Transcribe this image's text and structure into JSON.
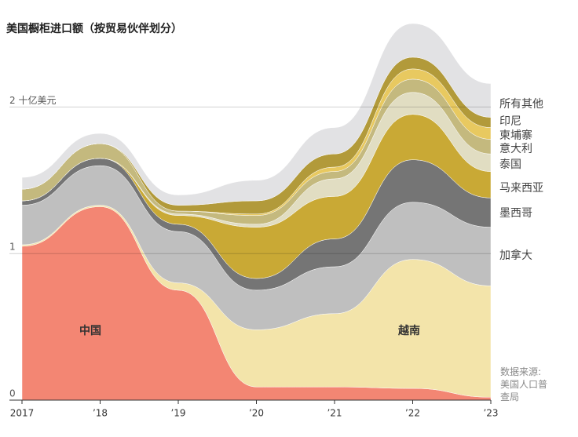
{
  "chart_data": {
    "type": "stacked-area",
    "title": "美国橱柜进口额（按贸易伙伴划分）",
    "source": "数据来源: 美国人口普查局",
    "x": [
      2017,
      2018,
      2019,
      2020,
      2021,
      2022,
      2023
    ],
    "xlim": [
      2017,
      2023
    ],
    "xticks": [
      2017,
      {
        "value": 2018,
        "label": "’18"
      },
      {
        "value": 2019,
        "label": "’19"
      },
      {
        "value": 2020,
        "label": "’20"
      },
      {
        "value": 2021,
        "label": "’21"
      },
      {
        "value": 2022,
        "label": "’22"
      },
      {
        "value": 2023,
        "label": "’23"
      }
    ],
    "ylim": [
      0,
      2.65
    ],
    "yticks": [
      0,
      1,
      {
        "value": 2,
        "label": "2 十亿美元"
      }
    ],
    "grid": true,
    "series": [
      {
        "name": "中国",
        "color": "#f38673",
        "values": [
          1.05,
          1.32,
          0.75,
          0.09,
          0.09,
          0.08,
          0.02
        ]
      },
      {
        "name": "越南",
        "color": "#f3e4aa",
        "values": [
          0.01,
          0.01,
          0.05,
          0.39,
          0.5,
          0.88,
          0.76
        ]
      },
      {
        "name": "加拿大",
        "color": "#bfbfbf",
        "values": [
          0.27,
          0.27,
          0.35,
          0.27,
          0.32,
          0.39,
          0.4
        ]
      },
      {
        "name": "墨西哥",
        "color": "#757575",
        "values": [
          0.03,
          0.05,
          0.05,
          0.08,
          0.19,
          0.29,
          0.2
        ]
      },
      {
        "name": "马来西亚",
        "color": "#c9a935",
        "values": [
          0,
          0,
          0.06,
          0.35,
          0.29,
          0.31,
          0.18
        ]
      },
      {
        "name": "泰国",
        "color": "#e1ddc2",
        "values": [
          0,
          0,
          0.01,
          0.02,
          0.12,
          0.15,
          0.12
        ]
      },
      {
        "name": "意大利",
        "color": "#c4b97e",
        "values": [
          0.08,
          0.1,
          0.02,
          0.06,
          0.05,
          0.09,
          0.1
        ]
      },
      {
        "name": "柬埔寨",
        "color": "#e8c960",
        "values": [
          0,
          0,
          0,
          0.01,
          0.03,
          0.07,
          0.08
        ]
      },
      {
        "name": "印尼",
        "color": "#b29a3a",
        "values": [
          0,
          0,
          0.04,
          0.09,
          0.09,
          0.08,
          0.07
        ]
      },
      {
        "name": "所有其他",
        "color": "#e2e2e4",
        "values": [
          0.08,
          0.07,
          0.07,
          0.14,
          0.18,
          0.23,
          0.23
        ]
      }
    ]
  }
}
